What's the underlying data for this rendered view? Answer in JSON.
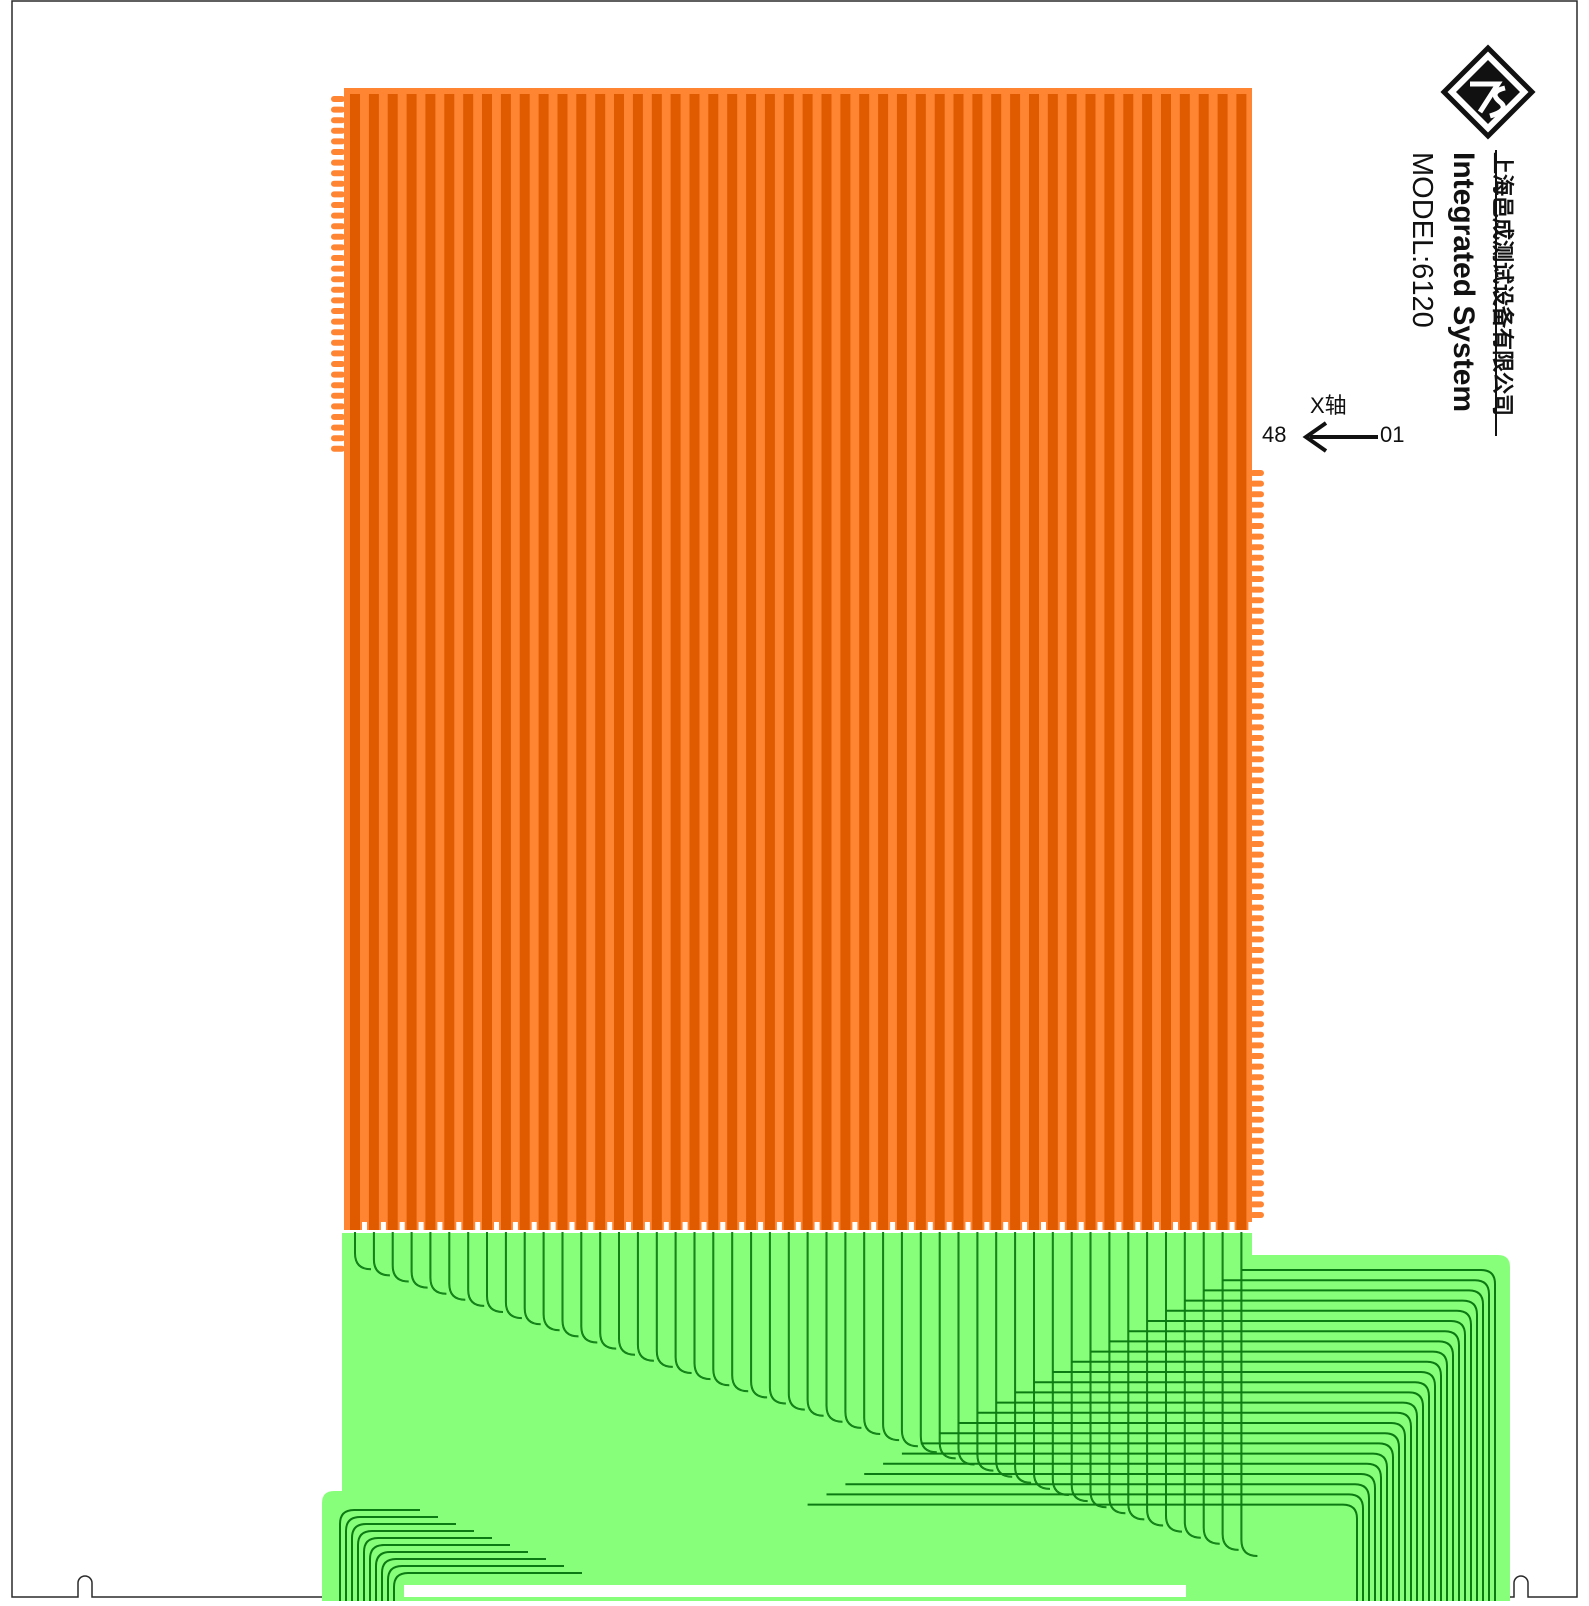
{
  "brand": {
    "name_cn": "上海邑成测试设备有限公司",
    "name_en": "Integrated System",
    "model": "MODEL:6120"
  },
  "axis": {
    "label": "X轴",
    "start": "01",
    "end": "48"
  },
  "colors": {
    "outline": "#2a2a2a",
    "pad_light": "#ff8533",
    "pad_dark": "#e05a00",
    "flex": "#88ff7a",
    "flex_trace": "#0b7a12",
    "logo": "#111111"
  },
  "icons": {
    "logo": "diamond-ts-logo-icon",
    "arrow": "arrow-left-icon"
  }
}
